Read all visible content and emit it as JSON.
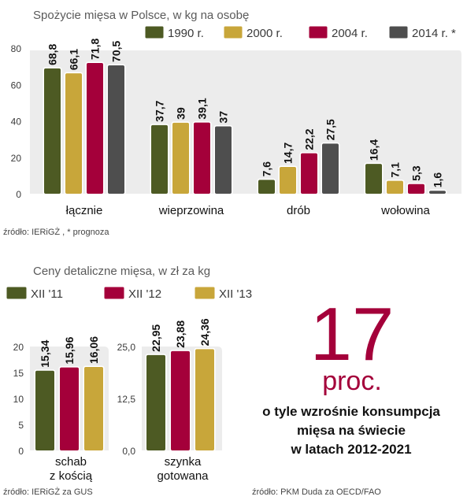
{
  "colors": {
    "c1990": "#4d5a23",
    "c2000": "#c8a63a",
    "c2004": "#a4003a",
    "c2014": "#4e4e4e",
    "panel": "#ececec",
    "accent": "#a4003a"
  },
  "chart_data": [
    {
      "type": "bar",
      "title": "Spożycie mięsa w Polsce, w kg na osobę",
      "categories": [
        "łącznie",
        "wieprzowina",
        "drób",
        "wołowina"
      ],
      "series": [
        {
          "name": "1990 r.",
          "values": [
            68.8,
            37.7,
            7.6,
            16.4
          ]
        },
        {
          "name": "2000 r.",
          "values": [
            66.1,
            39,
            14.7,
            7.1
          ]
        },
        {
          "name": "2004 r.",
          "values": [
            71.8,
            39.1,
            22.2,
            5.3
          ]
        },
        {
          "name": "2014 r. *",
          "values": [
            70.5,
            37,
            27.5,
            1.6
          ]
        }
      ],
      "value_labels": [
        [
          "68,8",
          "37,7",
          "7,6",
          "16,4"
        ],
        [
          "66,1",
          "39",
          "14,7",
          "7,1"
        ],
        [
          "71,8",
          "39,1",
          "22,2",
          "5,3"
        ],
        [
          "70,5",
          "37",
          "27,5",
          "1,6"
        ]
      ],
      "yticks": [
        "0",
        "20",
        "40",
        "60",
        "80"
      ],
      "ylim": [
        0,
        80
      ],
      "grid": false,
      "legend": "top",
      "source": "źródło: IERiGŻ , * prognoza"
    },
    {
      "type": "bar",
      "title": "Ceny detaliczne mięsa, w zł za kg",
      "legend": "top-left",
      "series_names": [
        "XII '11",
        "XII '12",
        "XII '13"
      ],
      "groups": [
        {
          "category": "schab z kością",
          "category_lines": [
            "schab",
            "z kością"
          ],
          "values": [
            15.34,
            15.96,
            16.06
          ],
          "value_labels": [
            "15,34",
            "15,96",
            "16,06"
          ],
          "yticks": [
            "0",
            "5",
            "10",
            "15",
            "20"
          ],
          "ylim": [
            0,
            20
          ]
        },
        {
          "category": "szynka gotowana",
          "category_lines": [
            "szynka",
            "gotowana"
          ],
          "values": [
            22.95,
            23.88,
            24.36
          ],
          "value_labels": [
            "22,95",
            "23,88",
            "24,36"
          ],
          "yticks": [
            "0,0",
            "12,5",
            "25,0"
          ],
          "ylim": [
            0,
            25
          ]
        }
      ],
      "source": "źródło: IERiGŻ za GUS"
    }
  ],
  "highlight": {
    "number": "17",
    "unit": "proc.",
    "lines": [
      "o tyle wzrośnie konsumpcja",
      "mięsa na świecie",
      "w latach 2012-2021"
    ],
    "source": "źródło: PKM Duda za OECD/FAO"
  }
}
